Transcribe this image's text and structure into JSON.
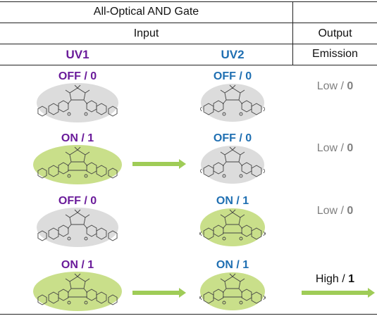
{
  "header": {
    "title": "All-Optical AND Gate",
    "input_label": "Input",
    "output_label": "Output",
    "uv1_label": "UV1",
    "uv2_label": "UV2",
    "emission_label": "Emission"
  },
  "colors": {
    "uv1": "#6a1b9a",
    "uv2": "#1f6fb2",
    "off_fill": "#dcdcdc",
    "on_fill": "#c9df8a",
    "arrow": "#9fcc57",
    "low_text": "#808080",
    "high_text": "#111111"
  },
  "rows": [
    {
      "uv1": "OFF / 0",
      "uv2": "OFF / 0",
      "out_word": "Low / ",
      "out_bit": "0",
      "uv1_on": false,
      "uv2_on": false,
      "arrow1": false,
      "arrow_out": false
    },
    {
      "uv1": "ON / 1",
      "uv2": "OFF / 0",
      "out_word": "Low / ",
      "out_bit": "0",
      "uv1_on": true,
      "uv2_on": false,
      "arrow1": true,
      "arrow_out": false
    },
    {
      "uv1": "OFF / 0",
      "uv2": "ON / 1",
      "out_word": "Low / ",
      "out_bit": "0",
      "uv1_on": false,
      "uv2_on": true,
      "arrow1": false,
      "arrow_out": false
    },
    {
      "uv1": "ON / 1",
      "uv2": "ON / 1",
      "out_word": "High / ",
      "out_bit": "1",
      "uv1_on": true,
      "uv2_on": true,
      "arrow1": true,
      "arrow_out": true
    }
  ],
  "substituent_labels": {
    "x": "X",
    "fluorine": "F"
  }
}
